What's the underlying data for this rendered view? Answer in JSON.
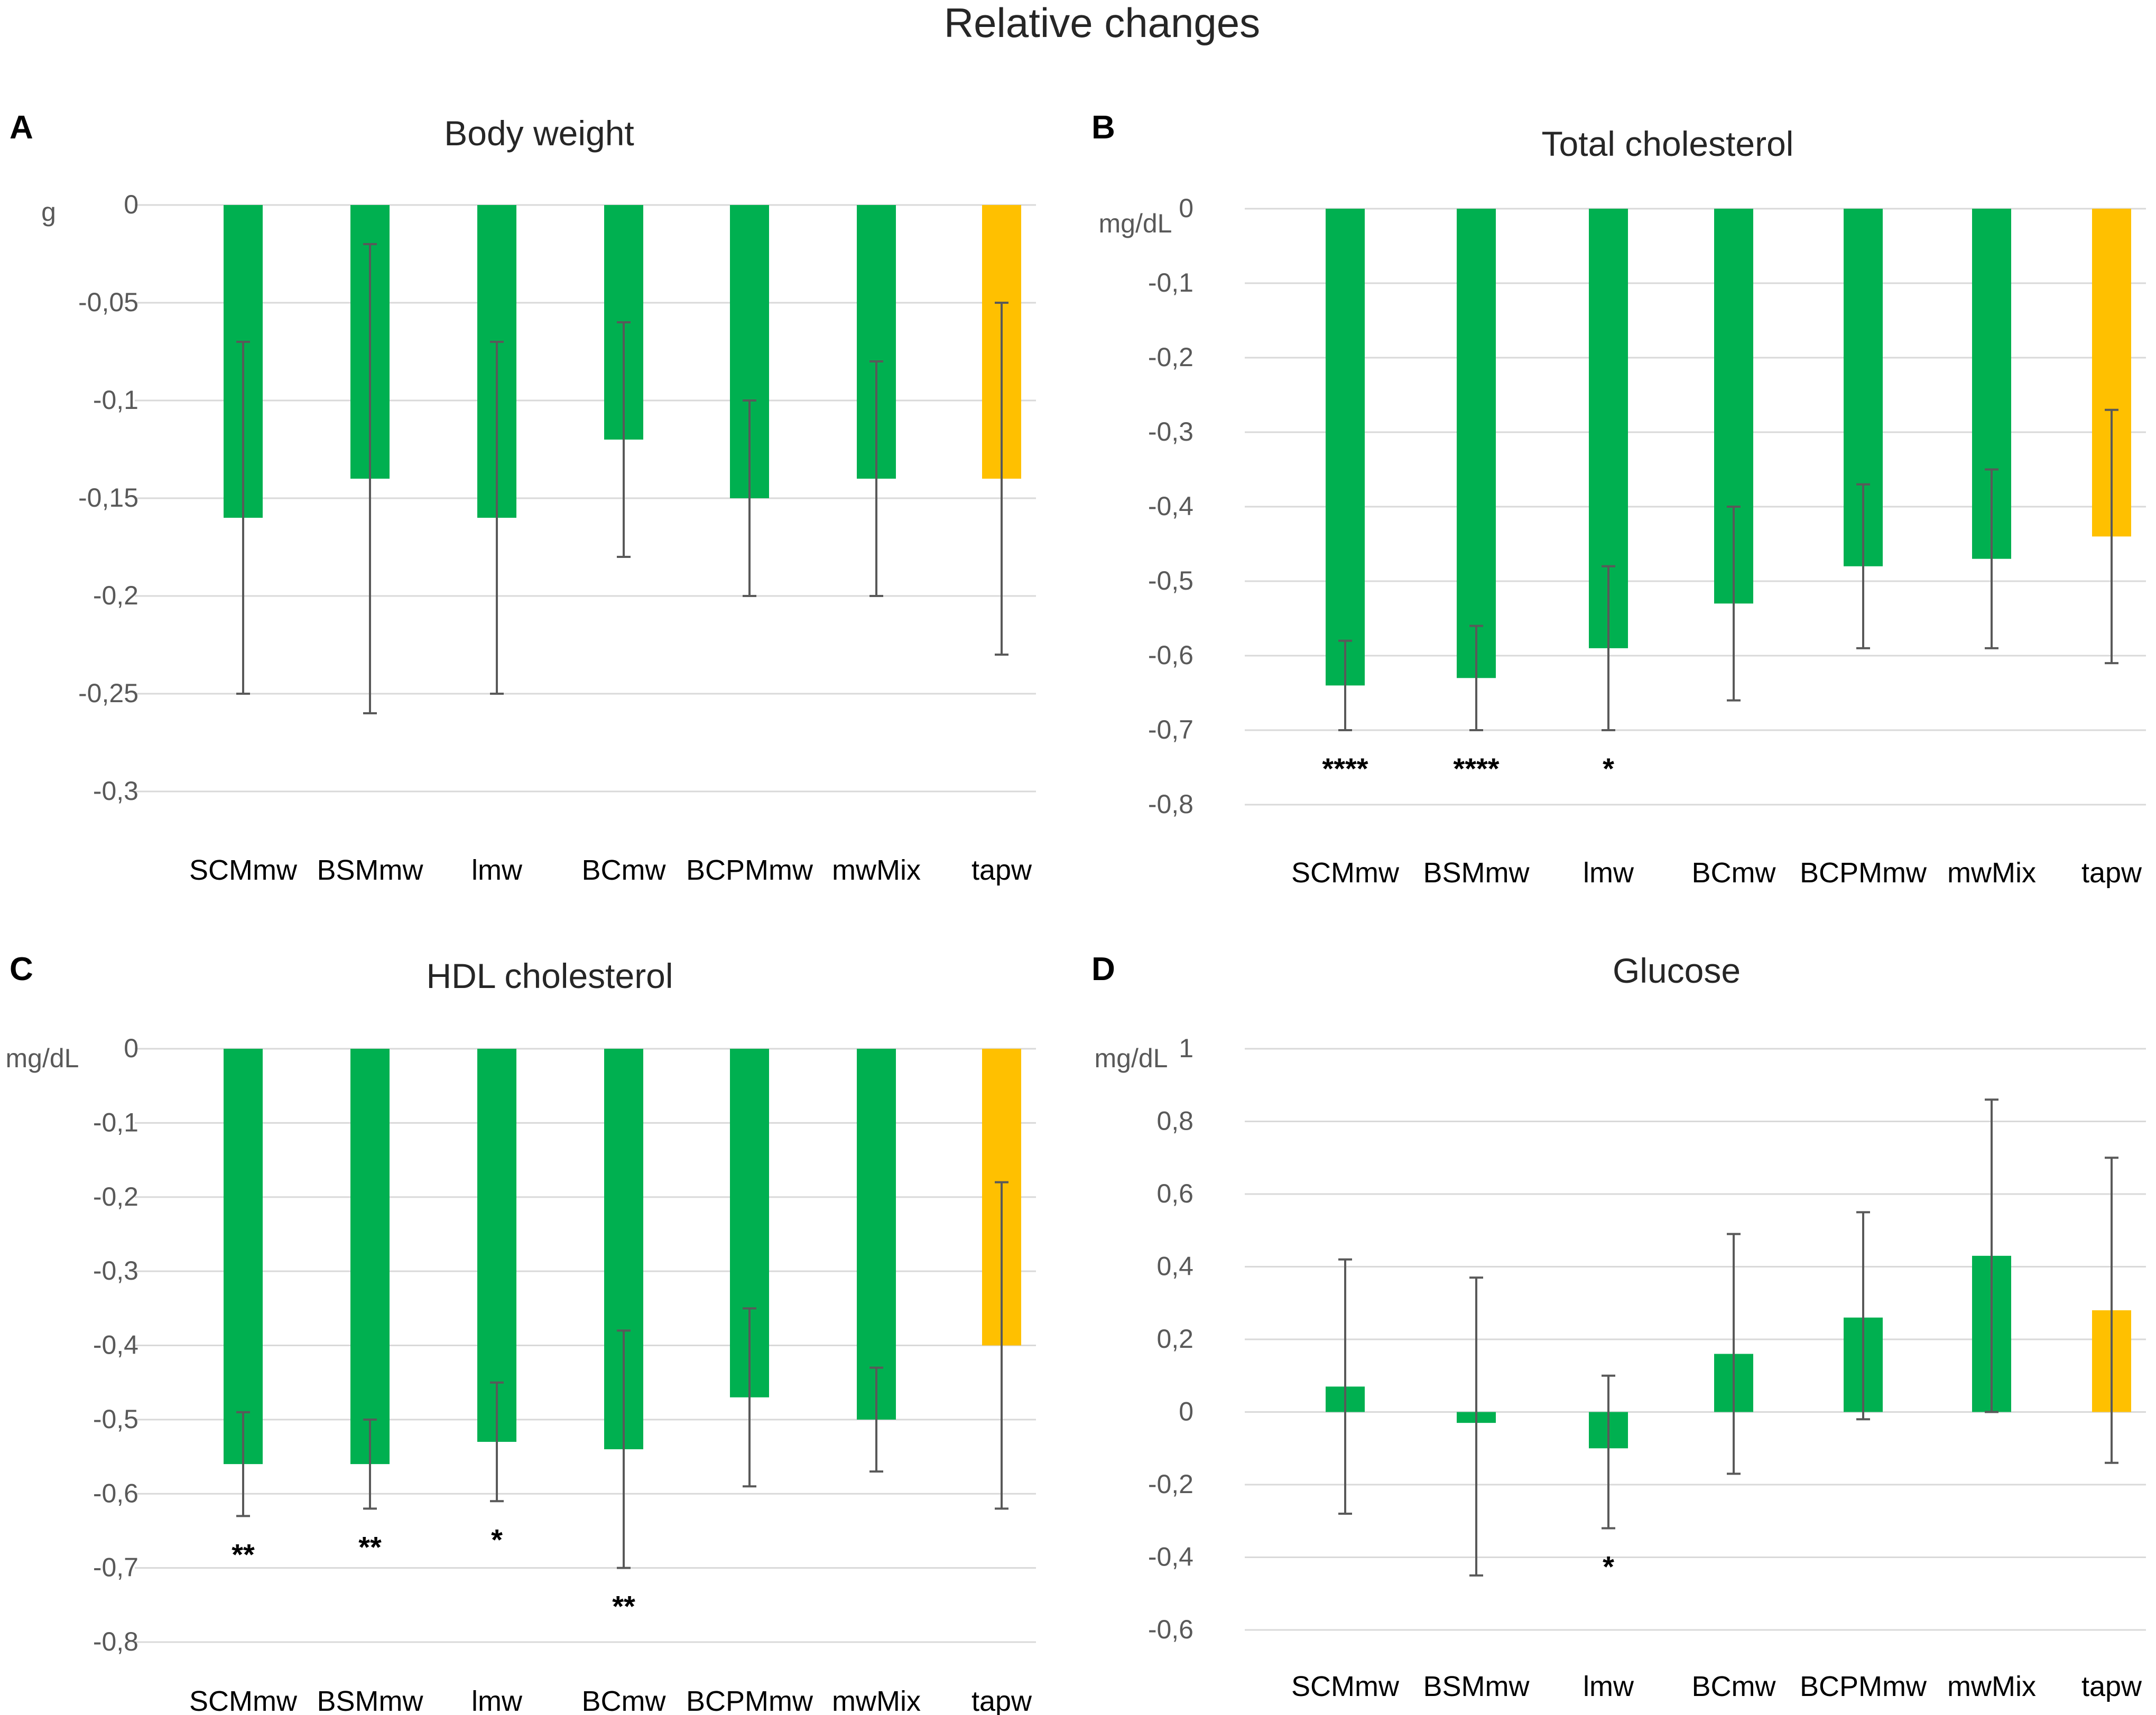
{
  "figure": {
    "title": "Relative changes",
    "bar_color_default": "#00b050",
    "bar_color_highlight": "#ffc000",
    "grid_color": "#d9d9d9",
    "error_bar_color": "#595959"
  },
  "chart_data": [
    {
      "panel": "A",
      "type": "bar",
      "title": "Body weight",
      "ylabel": "g",
      "xlabel": "",
      "categories": [
        "SCMmw",
        "BSMmw",
        "lmw",
        "BCmw",
        "BCPMmw",
        "mwMix",
        "tapw"
      ],
      "values": [
        -0.16,
        -0.14,
        -0.16,
        -0.12,
        -0.15,
        -0.14,
        -0.14
      ],
      "error_low": [
        -0.25,
        -0.26,
        -0.25,
        -0.18,
        -0.2,
        -0.2,
        -0.23
      ],
      "error_high": [
        -0.07,
        -0.02,
        -0.07,
        -0.06,
        -0.1,
        -0.08,
        -0.05
      ],
      "highlight": [
        false,
        false,
        false,
        false,
        false,
        false,
        true
      ],
      "significance": [
        "",
        "",
        "",
        "",
        "",
        "",
        ""
      ],
      "ylim": [
        -0.3,
        0
      ],
      "yticks": [
        0,
        -0.05,
        -0.1,
        -0.15,
        -0.2,
        -0.25,
        -0.3
      ],
      "ytick_labels": [
        "0",
        "-0,05",
        "-0,1",
        "-0,15",
        "-0,2",
        "-0,25",
        "-0,3"
      ],
      "grid": true
    },
    {
      "panel": "B",
      "type": "bar",
      "title": "Total cholesterol",
      "ylabel": "mg/dL",
      "xlabel": "",
      "categories": [
        "SCMmw",
        "BSMmw",
        "lmw",
        "BCmw",
        "BCPMmw",
        "mwMix",
        "tapw"
      ],
      "values": [
        -0.64,
        -0.63,
        -0.59,
        -0.53,
        -0.48,
        -0.47,
        -0.44
      ],
      "error_low": [
        -0.7,
        -0.7,
        -0.7,
        -0.66,
        -0.59,
        -0.59,
        -0.61
      ],
      "error_high": [
        -0.58,
        -0.56,
        -0.48,
        -0.4,
        -0.37,
        -0.35,
        -0.27
      ],
      "highlight": [
        false,
        false,
        false,
        false,
        false,
        false,
        true
      ],
      "significance": [
        "****",
        "****",
        "*",
        "",
        "",
        "",
        ""
      ],
      "ylim": [
        -0.8,
        0
      ],
      "yticks": [
        0,
        -0.1,
        -0.2,
        -0.3,
        -0.4,
        -0.5,
        -0.6,
        -0.7,
        -0.8
      ],
      "ytick_labels": [
        "0",
        "-0,1",
        "-0,2",
        "-0,3",
        "-0,4",
        "-0,5",
        "-0,6",
        "-0,7",
        "-0,8"
      ],
      "grid": true
    },
    {
      "panel": "C",
      "type": "bar",
      "title": "HDL cholesterol",
      "ylabel": "mg/dL",
      "xlabel": "",
      "categories": [
        "SCMmw",
        "BSMmw",
        "lmw",
        "BCmw",
        "BCPMmw",
        "mwMix",
        "tapw"
      ],
      "values": [
        -0.56,
        -0.56,
        -0.53,
        -0.54,
        -0.47,
        -0.5,
        -0.4
      ],
      "error_low": [
        -0.63,
        -0.62,
        -0.61,
        -0.7,
        -0.59,
        -0.57,
        -0.62
      ],
      "error_high": [
        -0.49,
        -0.5,
        -0.45,
        -0.38,
        -0.35,
        -0.43,
        -0.18
      ],
      "highlight": [
        false,
        false,
        false,
        false,
        false,
        false,
        true
      ],
      "significance": [
        "**",
        "**",
        "*",
        "**",
        "",
        "",
        ""
      ],
      "ylim": [
        -0.8,
        0
      ],
      "yticks": [
        0,
        -0.1,
        -0.2,
        -0.3,
        -0.4,
        -0.5,
        -0.6,
        -0.7,
        -0.8
      ],
      "ytick_labels": [
        "0",
        "-0,1",
        "-0,2",
        "-0,3",
        "-0,4",
        "-0,5",
        "-0,6",
        "-0,7",
        "-0,8"
      ],
      "grid": true
    },
    {
      "panel": "D",
      "type": "bar",
      "title": "Glucose",
      "ylabel": "mg/dL",
      "xlabel": "",
      "categories": [
        "SCMmw",
        "BSMmw",
        "lmw",
        "BCmw",
        "BCPMmw",
        "mwMix",
        "tapw"
      ],
      "values": [
        0.07,
        -0.03,
        -0.1,
        0.16,
        0.26,
        0.43,
        0.28
      ],
      "error_low": [
        -0.28,
        -0.45,
        -0.32,
        -0.17,
        -0.02,
        0.0,
        -0.14
      ],
      "error_high": [
        0.42,
        0.37,
        0.1,
        0.49,
        0.55,
        0.86,
        0.7
      ],
      "highlight": [
        false,
        false,
        false,
        false,
        false,
        false,
        true
      ],
      "significance": [
        "",
        "",
        "*",
        "",
        "",
        "",
        ""
      ],
      "ylim": [
        -0.6,
        1
      ],
      "yticks": [
        1,
        0.8,
        0.6,
        0.4,
        0.2,
        0,
        -0.2,
        -0.4,
        -0.6
      ],
      "ytick_labels": [
        "1",
        "0,8",
        "0,6",
        "0,4",
        "0,2",
        "0",
        "-0,2",
        "-0,4",
        "-0,6"
      ],
      "grid": true
    }
  ]
}
